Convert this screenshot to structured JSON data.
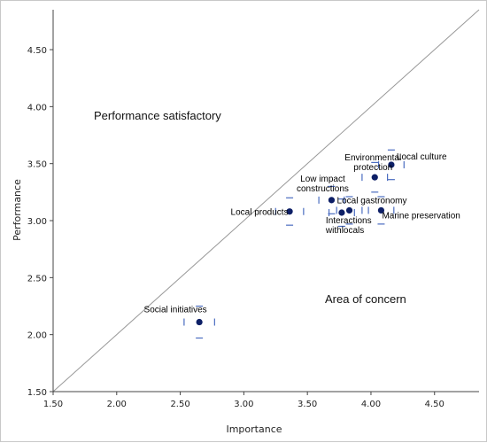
{
  "chart_data": {
    "type": "scatter",
    "title": "",
    "xlabel": "Importance",
    "ylabel": "Performance",
    "xlim": [
      1.5,
      4.85
    ],
    "ylim": [
      1.5,
      4.85
    ],
    "xticks": [
      "1.50",
      "2.00",
      "2.50",
      "3.00",
      "3.50",
      "4.00",
      "4.50"
    ],
    "yticks": [
      "1.50",
      "2.00",
      "2.50",
      "3.00",
      "3.50",
      "4.00",
      "4.50"
    ],
    "reference_line": "y = x",
    "region_labels": {
      "upper": "Performance satisfactory",
      "lower": "Area of concern"
    },
    "points": [
      {
        "label": [
          "Local culture"
        ],
        "x": 4.16,
        "y": 3.49,
        "err_x": 0.1,
        "err_y": 0.13
      },
      {
        "label": [
          "Environmental",
          "protection"
        ],
        "x": 4.03,
        "y": 3.38,
        "err_x": 0.1,
        "err_y": 0.13
      },
      {
        "label": [
          "Low impact",
          "constructions"
        ],
        "x": 3.69,
        "y": 3.18,
        "err_x": 0.1,
        "err_y": 0.12
      },
      {
        "label": [
          "Local gastronomy"
        ],
        "x": 3.83,
        "y": 3.09,
        "err_x": 0.1,
        "err_y": 0.12
      },
      {
        "label": [
          "Local products"
        ],
        "x": 3.36,
        "y": 3.08,
        "err_x": 0.11,
        "err_y": 0.12
      },
      {
        "label": [
          "Interactions",
          "withlocals"
        ],
        "x": 3.77,
        "y": 3.07,
        "err_x": 0.1,
        "err_y": 0.12
      },
      {
        "label": [
          "Marine preservation"
        ],
        "x": 4.08,
        "y": 3.09,
        "err_x": 0.1,
        "err_y": 0.12
      },
      {
        "label": [
          "Social initiatives"
        ],
        "x": 2.65,
        "y": 2.11,
        "err_x": 0.12,
        "err_y": 0.14
      }
    ],
    "grid": false,
    "legend": "none",
    "colors": {
      "point": "#0d1f66",
      "error": "#4a6cc0",
      "diagonal": "#999999",
      "axis": "#444444"
    }
  }
}
